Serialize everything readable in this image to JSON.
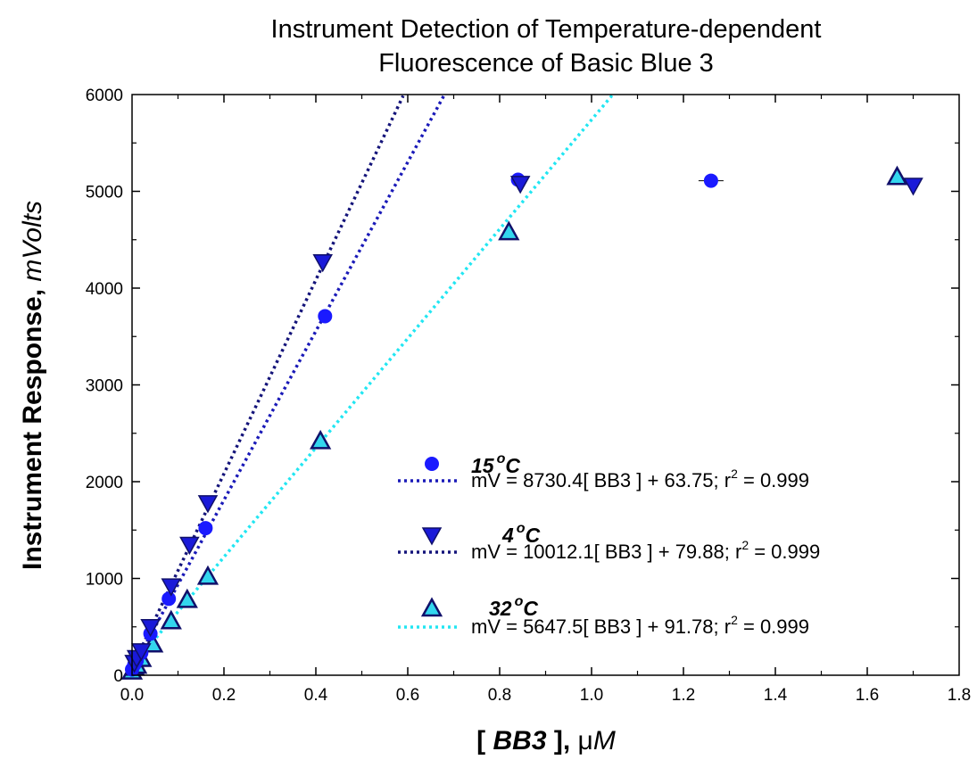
{
  "chart_data": {
    "type": "scatter",
    "title": [
      "Instrument Detection of Temperature-dependent",
      "Fluorescence of Basic Blue 3"
    ],
    "xlabel": {
      "bracket_open": "[ ",
      "symbol": "BB3",
      "bracket_close": " ], ",
      "mu": "μ",
      "unit": "M"
    },
    "ylabel": {
      "main": "Instrument Response, ",
      "unit": "mVolts"
    },
    "xlim": [
      0.0,
      1.8
    ],
    "ylim": [
      0,
      6000
    ],
    "x_ticks": [
      "0.0",
      "0.2",
      "0.4",
      "0.6",
      "0.8",
      "1.0",
      "1.2",
      "1.4",
      "1.6",
      "1.8"
    ],
    "y_ticks": [
      "0",
      "1000",
      "2000",
      "3000",
      "4000",
      "5000",
      "6000"
    ],
    "grid": false,
    "legend_position": "lower-right",
    "series": [
      {
        "name": "15",
        "marker": "circle",
        "color": "#1a1aff",
        "x": [
          0.0,
          0.005,
          0.01,
          0.02,
          0.04,
          0.08,
          0.16,
          0.42,
          0.84,
          1.26
        ],
        "y": [
          60,
          110,
          150,
          230,
          430,
          790,
          1520,
          3710,
          5120,
          5110
        ],
        "fit": {
          "slope": 8730.4,
          "intercept": 63.75,
          "x_end": 0.68,
          "color": "#1a1ab8"
        },
        "equation_parts": [
          "mV = 8730.4[ BB3 ] + 63.75; r",
          "2",
          " = 0.999"
        ]
      },
      {
        "name": "4",
        "marker": "triangle-down",
        "color": "#1a1ad9",
        "x": [
          0.005,
          0.01,
          0.02,
          0.04,
          0.085,
          0.125,
          0.165,
          0.415,
          0.845,
          1.7
        ],
        "y": [
          130,
          180,
          250,
          500,
          920,
          1350,
          1780,
          4270,
          5080,
          5060
        ],
        "fit": {
          "slope": 10012.1,
          "intercept": 79.88,
          "x_end": 0.59,
          "color": "#14147a"
        },
        "equation_parts": [
          "mV =  10012.1[ BB3 ] + 79.88; r",
          "2",
          " = 0.999"
        ]
      },
      {
        "name": "32",
        "marker": "triangle-up",
        "color": "#33d6ee",
        "x": [
          0.0,
          0.005,
          0.01,
          0.02,
          0.045,
          0.085,
          0.12,
          0.165,
          0.41,
          0.82,
          1.665
        ],
        "y": [
          40,
          80,
          100,
          170,
          320,
          560,
          780,
          1020,
          2420,
          4580,
          5150
        ],
        "fit": {
          "slope": 5647.5,
          "intercept": 91.78,
          "x_end": 1.045,
          "color": "#22e6f2"
        },
        "equation_parts": [
          "mV =  5647.5[ BB3 ] + 91.78; r",
          "2",
          " = 0.999"
        ]
      }
    ],
    "legend_degree": "o",
    "legend_unit": "C"
  }
}
